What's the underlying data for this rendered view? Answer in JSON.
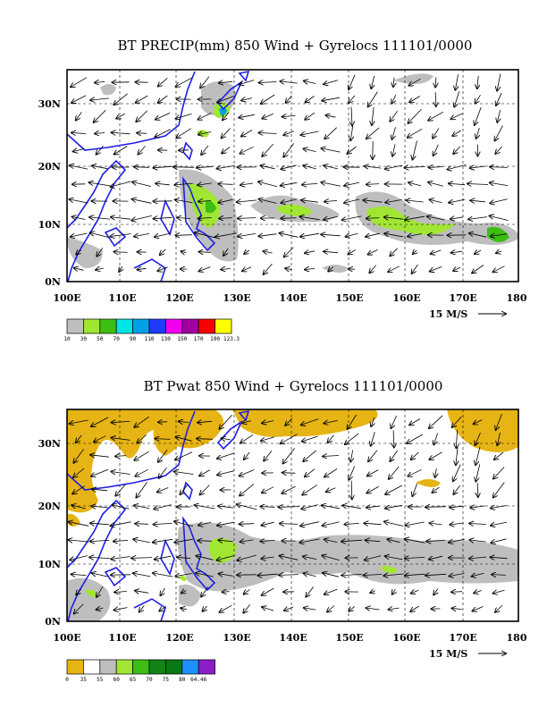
{
  "panels": [
    {
      "id": "precip",
      "title": "BT PRECIP(mm) 850 Wind + Gyrelocs 111101/0000",
      "lat_labels": [
        "30N",
        "20N",
        "10N",
        "0N"
      ],
      "lon_labels": [
        "100E",
        "110E",
        "120E",
        "130E",
        "140E",
        "150E",
        "160E",
        "170E",
        "180"
      ],
      "reference_vector": "15 M/S",
      "legend": {
        "colors": [
          "#bebebe",
          "#a0e632",
          "#3cbe14",
          "#00e6e6",
          "#00a0e6",
          "#1e3cff",
          "#f000f0",
          "#a000a0",
          "#fa0000",
          "#ffff00"
        ],
        "labels": [
          "10",
          "30",
          "50",
          "70",
          "90",
          "110",
          "130",
          "150",
          "170",
          "190",
          "123.3"
        ]
      }
    },
    {
      "id": "pwat",
      "title": "BT Pwat 850 Wind + Gyrelocs 111101/0000",
      "lat_labels": [
        "30N",
        "20N",
        "10N",
        "0N"
      ],
      "lon_labels": [
        "100E",
        "110E",
        "120E",
        "130E",
        "140E",
        "150E",
        "160E",
        "170E",
        "180"
      ],
      "reference_vector": "15 M/S",
      "legend": {
        "colors": [
          "#e6b414",
          "#ffffff",
          "#bebebe",
          "#a0e632",
          "#3cbe14",
          "#148214",
          "#0a7814",
          "#1e90ff",
          "#8c1ec8"
        ],
        "labels": [
          "0",
          "35",
          "55",
          "60",
          "65",
          "70",
          "75",
          "80",
          "64.46"
        ]
      }
    }
  ],
  "colors": {
    "coast": "#1e1ee6",
    "frame": "#000000",
    "grid": "#000000"
  }
}
